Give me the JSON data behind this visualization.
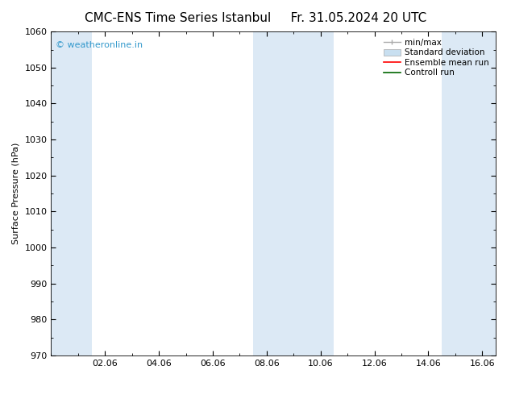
{
  "title_left": "CMC-ENS Time Series Istanbul",
  "title_right": "Fr. 31.05.2024 20 UTC",
  "ylabel": "Surface Pressure (hPa)",
  "ylim": [
    970,
    1060
  ],
  "yticks": [
    970,
    980,
    990,
    1000,
    1010,
    1020,
    1030,
    1040,
    1050,
    1060
  ],
  "xlim": [
    0.0,
    16.5
  ],
  "xticks": [
    2,
    4,
    6,
    8,
    10,
    12,
    14,
    16
  ],
  "xticklabels": [
    "02.06",
    "04.06",
    "06.06",
    "08.06",
    "10.06",
    "12.06",
    "14.06",
    "16.06"
  ],
  "background_color": "#ffffff",
  "plot_bg_color": "#ffffff",
  "shaded_bands": [
    {
      "xmin": 0.0,
      "xmax": 1.5,
      "color": "#dce9f5"
    },
    {
      "xmin": 7.5,
      "xmax": 10.5,
      "color": "#dce9f5"
    },
    {
      "xmin": 14.5,
      "xmax": 16.5,
      "color": "#dce9f5"
    }
  ],
  "watermark_text": "© weatheronline.in",
  "watermark_color": "#3399cc",
  "watermark_fontsize": 8,
  "title_fontsize": 11,
  "label_fontsize": 8,
  "tick_fontsize": 8,
  "legend_fontsize": 7.5
}
